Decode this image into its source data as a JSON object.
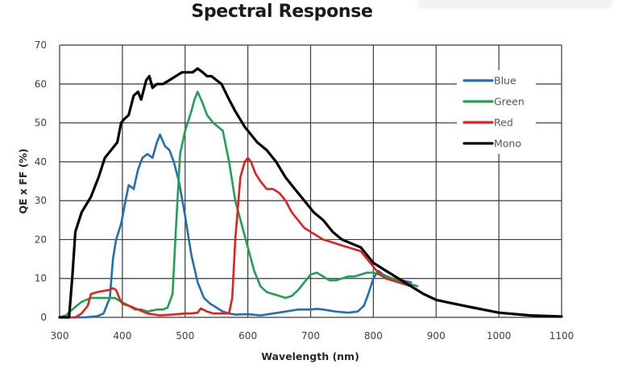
{
  "chart_data": {
    "type": "line",
    "title": "Spectral Response",
    "xlabel": "Wavelength (nm)",
    "ylabel": "QE x FF (%)",
    "xlim": [
      300,
      1100
    ],
    "ylim": [
      0,
      70
    ],
    "xticks": [
      "300",
      "400",
      "500",
      "600",
      "700",
      "800",
      "900",
      "1000",
      "1100"
    ],
    "yticks": [
      "0",
      "10",
      "20",
      "30",
      "40",
      "50",
      "60",
      "70"
    ],
    "grid": true,
    "legend_position": "top-right",
    "series": [
      {
        "name": "Blue",
        "color": "#1f6fb5",
        "x": [
          300,
          340,
          360,
          370,
          380,
          385,
          390,
          398,
          405,
          410,
          418,
          425,
          432,
          440,
          448,
          455,
          460,
          468,
          475,
          482,
          490,
          500,
          510,
          520,
          530,
          540,
          550,
          560,
          570,
          580,
          600,
          620,
          640,
          660,
          680,
          700,
          710,
          720,
          740,
          760,
          775,
          785,
          792,
          800,
          808,
          815,
          830,
          860
        ],
        "y": [
          0,
          0,
          0.3,
          1,
          5,
          15,
          20,
          24,
          30,
          34,
          33,
          38,
          41,
          42,
          41,
          45,
          47,
          44,
          43,
          40,
          35,
          26,
          16,
          9,
          5,
          3.5,
          2.5,
          1.5,
          1,
          0.7,
          0.8,
          0.5,
          1,
          1.5,
          2,
          2,
          2.2,
          2,
          1.5,
          1.2,
          1.5,
          3,
          6,
          10,
          12,
          11,
          10,
          9
        ]
      },
      {
        "name": "Green",
        "color": "#1fa055",
        "x": [
          300,
          310,
          320,
          335,
          350,
          360,
          375,
          388,
          398,
          410,
          420,
          430,
          440,
          455,
          465,
          472,
          480,
          485,
          492,
          500,
          510,
          515,
          520,
          528,
          535,
          545,
          560,
          570,
          580,
          590,
          600,
          610,
          620,
          630,
          640,
          650,
          660,
          670,
          680,
          690,
          700,
          710,
          720,
          730,
          740,
          750,
          760,
          770,
          780,
          790,
          800,
          810,
          820,
          830,
          850,
          870
        ],
        "y": [
          0,
          0.5,
          2,
          4,
          5,
          5,
          5,
          5,
          4,
          3,
          2,
          2,
          1.5,
          2,
          2,
          2.5,
          6,
          22,
          42,
          48,
          53,
          56,
          58,
          55,
          52,
          50,
          48,
          40,
          30,
          24,
          18,
          12,
          8,
          6.5,
          6,
          5.5,
          5,
          5.5,
          7,
          9,
          11,
          11.5,
          10.5,
          9.5,
          9.5,
          10,
          10.5,
          10.5,
          11,
          11.5,
          11.5,
          11,
          10.5,
          10,
          9,
          8
        ]
      },
      {
        "name": "Red",
        "color": "#e0211d",
        "x": [
          300,
          325,
          335,
          345,
          350,
          360,
          370,
          378,
          385,
          390,
          395,
          400,
          410,
          425,
          440,
          460,
          480,
          500,
          510,
          520,
          525,
          535,
          545,
          555,
          565,
          570,
          575,
          580,
          588,
          595,
          600,
          605,
          612,
          620,
          630,
          640,
          650,
          660,
          670,
          680,
          690,
          700,
          710,
          720,
          730,
          740,
          750,
          760,
          770,
          780,
          790,
          800,
          810,
          820,
          840,
          860,
          880,
          900,
          950,
          1000,
          1050,
          1100
        ],
        "y": [
          0,
          0,
          1,
          3,
          6,
          6.5,
          6.8,
          7,
          7.5,
          7,
          5,
          3.5,
          3,
          2,
          1,
          0.5,
          0.7,
          1,
          1,
          1.2,
          2.3,
          1.5,
          1,
          1,
          1,
          1,
          5,
          20,
          36,
          40,
          41,
          40,
          37,
          35,
          33,
          33,
          32,
          30,
          27,
          25,
          23,
          22,
          21,
          20,
          19.5,
          19,
          18.5,
          18,
          17.5,
          17,
          15,
          13,
          11,
          10,
          9,
          8,
          6,
          4.5,
          2.8,
          1.2,
          0.5,
          0.2
        ]
      },
      {
        "name": "Mono",
        "color": "#000000",
        "x": [
          300,
          308,
          315,
          320,
          325,
          335,
          350,
          362,
          372,
          382,
          392,
          398,
          403,
          410,
          418,
          425,
          430,
          438,
          443,
          448,
          455,
          465,
          475,
          485,
          495,
          505,
          512,
          520,
          528,
          535,
          542,
          550,
          558,
          570,
          580,
          595,
          605,
          615,
          630,
          645,
          660,
          675,
          690,
          705,
          720,
          735,
          750,
          765,
          780,
          790,
          800,
          810,
          820,
          830,
          845,
          860,
          880,
          900,
          920,
          950,
          1000,
          1050,
          1100
        ],
        "y": [
          0,
          0,
          0,
          10,
          22,
          27,
          31,
          36,
          41,
          43,
          45,
          50,
          51,
          52,
          57,
          58,
          56,
          61,
          62,
          59,
          60,
          60,
          61,
          62,
          63,
          63,
          63,
          64,
          63,
          62,
          62,
          61,
          60,
          56,
          53,
          49,
          47,
          45,
          43,
          40,
          36,
          33,
          30,
          27,
          25,
          22,
          20,
          19,
          18,
          16,
          14,
          13,
          12,
          11,
          9.5,
          8,
          6,
          4.5,
          3.8,
          2.8,
          1.2,
          0.5,
          0.2
        ]
      }
    ]
  }
}
